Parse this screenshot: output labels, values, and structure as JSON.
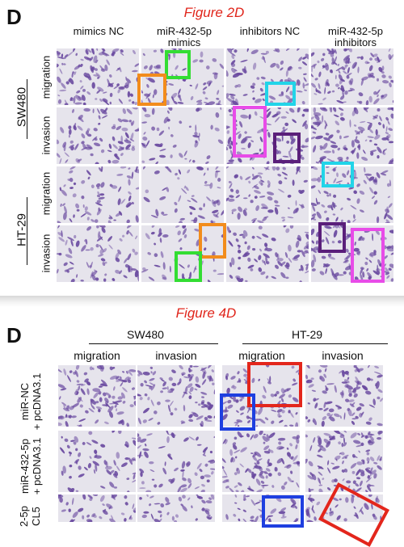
{
  "top_panel": {
    "letter": "D",
    "title": "Figure 2D",
    "columns": [
      "mimics NC",
      "miR-432-5p\nmimics",
      "inhibitors NC",
      "miR-432-5p\ninhibitors"
    ],
    "cell_lines": [
      "SW480",
      "HT-29"
    ],
    "rows": [
      "migration",
      "invasion",
      "migration",
      "invasion"
    ]
  },
  "bottom_panel": {
    "letter": "D",
    "title": "Figure 4D",
    "groups": [
      "SW480",
      "HT-29"
    ],
    "columns": [
      "migration",
      "invasion",
      "migration",
      "invasion"
    ],
    "rows": [
      "miR-NC\n+ pcDNA3.1",
      "miR-432-5p\n+ pcDNA3.1",
      "2-5p\nCL5"
    ]
  },
  "colors": {
    "green": "#33dd33",
    "orange": "#f28c1c",
    "cyan": "#22d4e8",
    "magenta": "#e84ce8",
    "purple": "#5a1f7a",
    "red": "#e3261c",
    "blue": "#1e3fe0",
    "stain": "#6a4aa0"
  }
}
